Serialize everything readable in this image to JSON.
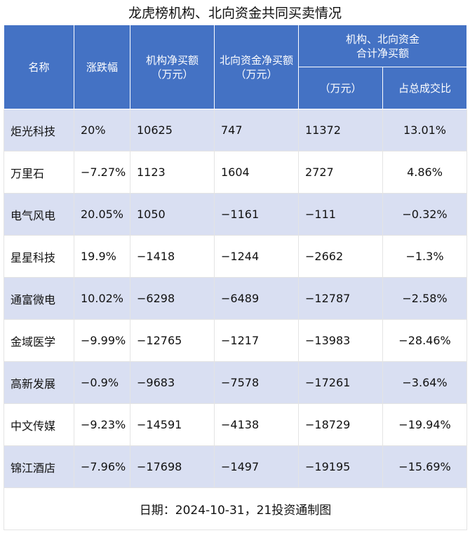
{
  "title": "龙虎榜机构、北向资金共同买卖情况",
  "table": {
    "header": [
      "名称",
      "涨跌幅",
      "机构净买额\n（万元）",
      "北向资金净买额（万元）"
    ],
    "group_header": "机构、北向资金\n合计净买额",
    "sub_header": [
      "（万元）",
      "占总成交比"
    ],
    "rows": [
      [
        "炬光科技",
        "20%",
        "10625",
        "747",
        "11372",
        "13.01%"
      ],
      [
        "万里石",
        "−7.27%",
        "1123",
        "1604",
        "2727",
        "4.86%"
      ],
      [
        "电气风电",
        "20.05%",
        "1050",
        "−1161",
        "−111",
        "−0.32%"
      ],
      [
        "星星科技",
        "19.9%",
        "−1418",
        "−1244",
        "−2662",
        "−1.3%"
      ],
      [
        "通富微电",
        "10.02%",
        "−6298",
        "−6489",
        "−12787",
        "−2.58%"
      ],
      [
        "金域医学",
        "−9.99%",
        "−12765",
        "−1217",
        "−13983",
        "−28.46%"
      ],
      [
        "高新发展",
        "−0.9%",
        "−9683",
        "−7578",
        "−17261",
        "−3.64%"
      ],
      [
        "中文传媒",
        "−9.23%",
        "−14591",
        "−4138",
        "−18729",
        "−19.94%"
      ],
      [
        "锦江酒店",
        "−7.96%",
        "−17698",
        "−1497",
        "−19195",
        "−15.69%"
      ]
    ]
  },
  "footer": "日期：2024-10-31，21投资通制图"
}
